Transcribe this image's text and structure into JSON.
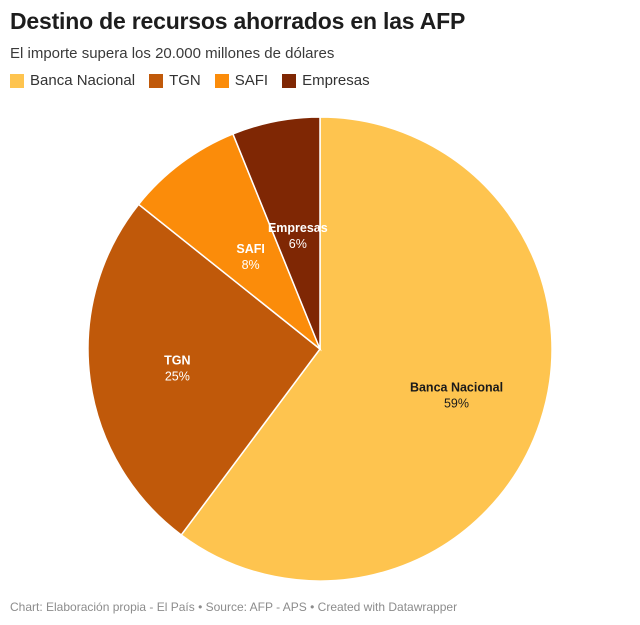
{
  "header": {
    "title": "Destino de recursos ahorrados en las AFP",
    "subtitle": "El importe supera los 20.000 millones de dólares"
  },
  "footer": {
    "source": "Chart: Elaboración propia - El País • Source: AFP - APS • Created with Datawrapper"
  },
  "chart_data": {
    "type": "pie",
    "title": "Destino de recursos ahorrados en las AFP",
    "subtitle": "El importe supera los 20.000 millones de dólares",
    "legend_position": "top-left",
    "slices": [
      {
        "label": "Banca Nacional",
        "value": 59,
        "display": "59%",
        "color": "#fec44f",
        "text_color": "#1a1a1a"
      },
      {
        "label": "TGN",
        "value": 25,
        "display": "25%",
        "color": "#c0590a",
        "text_color": "#ffffff"
      },
      {
        "label": "SAFI",
        "value": 8,
        "display": "8%",
        "color": "#fb8c0a",
        "text_color": "#ffffff"
      },
      {
        "label": "Empresas",
        "value": 6,
        "display": "6%",
        "color": "#7f2704",
        "text_color": "#ffffff"
      }
    ]
  }
}
